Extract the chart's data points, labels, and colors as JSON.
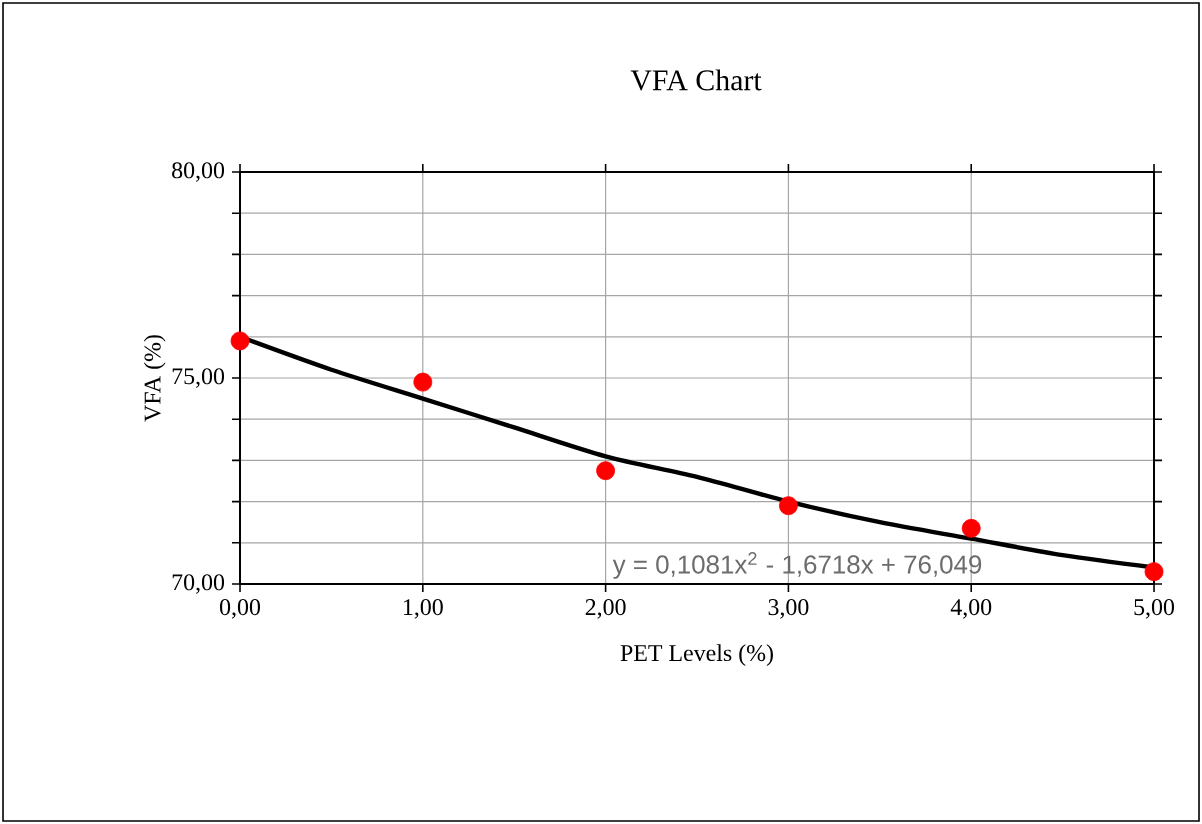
{
  "chart_data": {
    "type": "scatter",
    "title": "VFA Chart",
    "xlabel": "PET Levels (%)",
    "ylabel": "VFA (%)",
    "annotations": [
      "y = 0,1081x$^{2}$ - 1,6718x + 76,049"
    ],
    "xlim": [
      0,
      5
    ],
    "ylim": [
      70,
      80
    ],
    "xticks": [
      {
        "value": 0,
        "label": "0,00"
      },
      {
        "value": 1,
        "label": "1,00"
      },
      {
        "value": 2,
        "label": "2,00"
      },
      {
        "value": 3,
        "label": "3,00"
      },
      {
        "value": 4,
        "label": "4,00"
      },
      {
        "value": 5,
        "label": "5,00"
      }
    ],
    "yticks": [
      {
        "value": 70,
        "label": "70,00"
      },
      {
        "value": 71,
        "label": null
      },
      {
        "value": 72,
        "label": null
      },
      {
        "value": 73,
        "label": null
      },
      {
        "value": 74,
        "label": null
      },
      {
        "value": 75,
        "label": "75,00"
      },
      {
        "value": 76,
        "label": null
      },
      {
        "value": 77,
        "label": null
      },
      {
        "value": 78,
        "label": null
      },
      {
        "value": 79,
        "label": null
      },
      {
        "value": 80,
        "label": "80,00"
      }
    ],
    "grid": true,
    "series": [
      {
        "color": "#ff0000",
        "marker": "circle",
        "x": [
          0,
          1,
          2,
          3,
          4,
          5
        ],
        "values": [
          75.9,
          74.9,
          72.75,
          71.9,
          71.35,
          70.3
        ]
      },
      {
        "type": "line",
        "color": "#000000",
        "marker": "none",
        "line_style": "solid",
        "x": [
          0,
          0.5,
          1,
          1.5,
          2,
          2.5,
          3,
          3.5,
          4,
          4.5,
          5
        ],
        "values": [
          76.0,
          75.2,
          74.5,
          73.8,
          73.1,
          72.6,
          72.0,
          71.5,
          71.1,
          70.7,
          70.4
        ]
      }
    ]
  }
}
